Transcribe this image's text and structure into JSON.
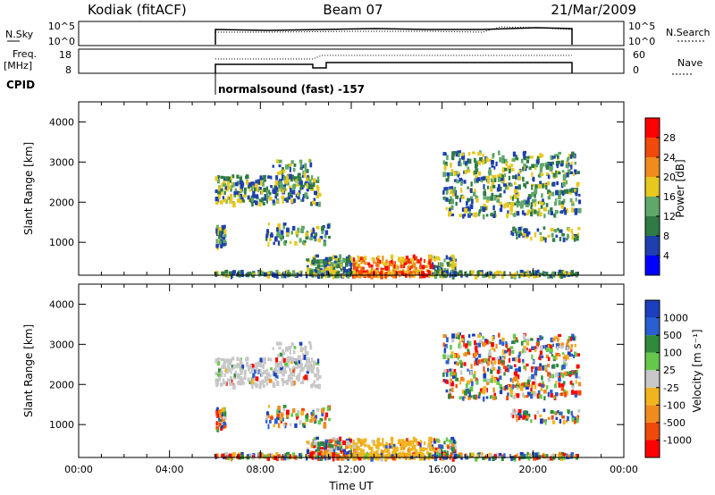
{
  "header": {
    "station": "Kodiak (fitACF)",
    "beam": "Beam 07",
    "date": "21/Mar/2009"
  },
  "strips": {
    "nsky_label": "N.Sky",
    "nsky_ticks": [
      "10^5",
      "10^0"
    ],
    "nsearch_label": "N.Search",
    "nsearch_ticks": [
      "10^5",
      "10^0"
    ],
    "freq_label": "Freq.",
    "freq_unit": "[MHz]",
    "freq_ticks": [
      "18",
      "8"
    ],
    "nave_label": "Nave",
    "nave_ticks": [
      "60",
      "0"
    ],
    "cpid_label": "CPID",
    "cpid_text": "normalsound (fast) -157"
  },
  "chart_data": [
    {
      "type": "heatmap",
      "name": "power",
      "ylabel": "Slant Range [km]",
      "xlabel": "",
      "xlim": [
        0,
        24
      ],
      "ylim": [
        180,
        4500
      ],
      "yticks": [
        1000,
        2000,
        3000,
        4000
      ],
      "colorbar": {
        "label": "Power [dB]",
        "ticks": [
          "4",
          "8",
          "12",
          "16",
          "20",
          "24",
          "28"
        ],
        "colors": [
          "#0000ff",
          "#1e3fb0",
          "#2f7a45",
          "#5fa86a",
          "#e6c81e",
          "#f08c1e",
          "#f04a0a",
          "#ff0000"
        ]
      },
      "data_window_utc": [
        "06:00",
        "22:00"
      ]
    },
    {
      "type": "heatmap",
      "name": "velocity",
      "ylabel": "Slant Range [km]",
      "xlabel": "Time UT",
      "xlim": [
        0,
        24
      ],
      "ylim": [
        180,
        4500
      ],
      "yticks": [
        1000,
        2000,
        3000,
        4000
      ],
      "xticks": [
        "00:00",
        "04:00",
        "08:00",
        "12:00",
        "16:00",
        "20:00",
        "00:00"
      ],
      "colorbar": {
        "label": "Velocity [m s⁻¹]",
        "ticks": [
          "1000",
          "500",
          "100",
          "25",
          "-25",
          "-100",
          "-500",
          "-1000"
        ],
        "colors": [
          "#1a3fbf",
          "#2a5fd0",
          "#2f8a3a",
          "#66c84a",
          "#c8c8c8",
          "#f0b41e",
          "#f08c1e",
          "#f04a0a",
          "#ff0000"
        ]
      },
      "data_window_utc": [
        "06:00",
        "22:00"
      ]
    }
  ]
}
